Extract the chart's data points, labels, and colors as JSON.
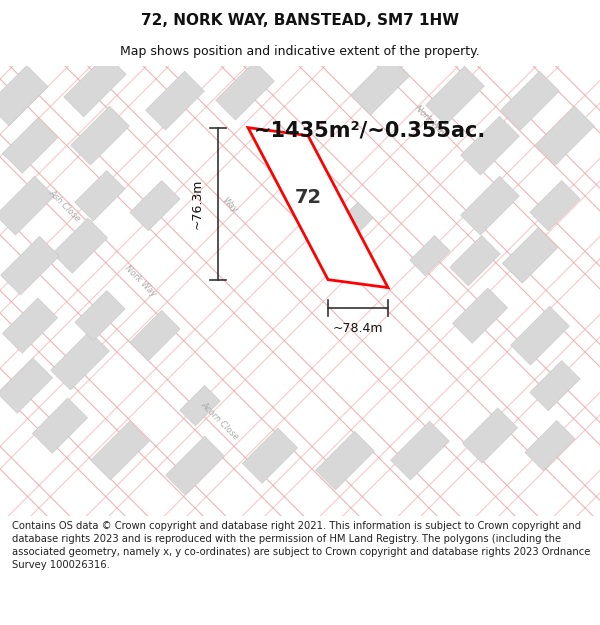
{
  "title": "72, NORK WAY, BANSTEAD, SM7 1HW",
  "subtitle": "Map shows position and indicative extent of the property.",
  "footer": "Contains OS data © Crown copyright and database right 2021. This information is subject to Crown copyright and database rights 2023 and is reproduced with the permission of HM Land Registry. The polygons (including the associated geometry, namely x, y co-ordinates) are subject to Crown copyright and database rights 2023 Ordnance Survey 100026316.",
  "area_text": "~1435m²/~0.355ac.",
  "dim_width": "~78.4m",
  "dim_height": "~76.3m",
  "plot_label": "72",
  "title_fontsize": 11,
  "subtitle_fontsize": 9,
  "footer_fontsize": 7.2,
  "road_color": "#f5c0c0",
  "road_color2": "#e8a8a8",
  "block_color": "#d8d8d8",
  "block_edge": "#cccccc",
  "plot_fill": "#ffffff",
  "plot_edge": "#ff0000",
  "map_bg": "#fafafa"
}
